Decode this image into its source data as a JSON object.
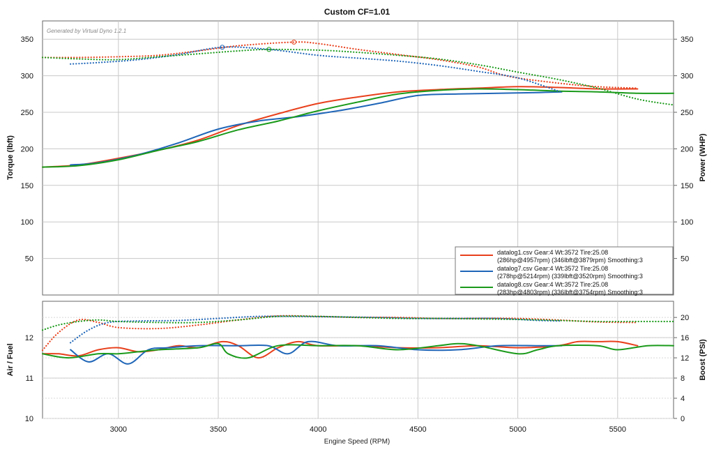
{
  "chart_data": {
    "title": "Custom CF=1.01",
    "watermark": "Generated by Virtual Dyno 1.2.1",
    "xlabel": "Engine Speed (RPM)",
    "xlim": [
      2620,
      5780
    ],
    "x_ticks": [
      3000,
      3500,
      4000,
      4500,
      5000,
      5500
    ],
    "colors": {
      "datalog1": "#e8401c",
      "datalog7": "#1f66b8",
      "datalog8": "#1a9a1a"
    },
    "panels": [
      {
        "name": "power-torque",
        "type": "line",
        "ylabel_left": "Torque (lbft)",
        "ylabel_right": "Power (WHP)",
        "ylim": [
          0,
          375
        ],
        "y_ticks": [
          50,
          100,
          150,
          200,
          250,
          300,
          350
        ],
        "y2lim": [
          0,
          375
        ],
        "y2_ticks": [
          50,
          100,
          150,
          200,
          250,
          300,
          350
        ],
        "legend_position": "bottom-right",
        "series": [
          {
            "name": "datalog1.csv Gear:4 Wt:3572 Tire:25.08",
            "detail": "(286hp@4957rpm) (346lbft@3879rpm) Smoothing:3",
            "color_key": "datalog1",
            "axis": "left",
            "style": "solid",
            "x": [
              2620,
              2800,
              3000,
              3200,
              3400,
              3600,
              3800,
              4000,
              4200,
              4400,
              4600,
              4800,
              5000,
              5200,
              5400,
              5600
            ],
            "y": [
              175,
              178,
              187,
              198,
              212,
              232,
              248,
              262,
              271,
              278,
              281,
              283,
              285,
              284,
              282,
              282
            ]
          },
          {
            "name": "datalog7.csv Gear:4 Wt:3572 Tire:25.08",
            "detail": "(278hp@5214rpm) (339lbft@3520rpm) Smoothing:3",
            "color_key": "datalog7",
            "axis": "left",
            "style": "solid",
            "x": [
              2760,
              2900,
              3100,
              3300,
              3500,
              3700,
              3900,
              4100,
              4300,
              4500,
              4700,
              4900,
              5100,
              5220
            ],
            "y": [
              178,
              181,
              192,
              208,
              227,
              238,
              244,
              252,
              262,
              273,
              275,
              276,
              277,
              278
            ]
          },
          {
            "name": "datalog8.csv Gear:4 Wt:3572 Tire:25.08",
            "detail": "(283hp@4803rpm) (336lbft@3754rpm) Smoothing:3",
            "color_key": "datalog8",
            "axis": "left",
            "style": "solid",
            "x": [
              2620,
              2800,
              3000,
              3200,
              3400,
              3600,
              3800,
              4000,
              4200,
              4400,
              4600,
              4800,
              5000,
              5200,
              5400,
              5600,
              5780
            ],
            "y": [
              175,
              177,
              185,
              198,
              210,
              226,
              238,
              252,
              264,
              275,
              280,
              282,
              281,
              279,
              278,
              276,
              276
            ]
          },
          {
            "name": "datalog1.csv",
            "color_key": "datalog1",
            "axis": "right",
            "style": "dotted",
            "x": [
              2620,
              2800,
              3000,
              3200,
              3400,
              3600,
              3879,
              4000,
              4200,
              4400,
              4600,
              4800,
              4957,
              5200,
              5400,
              5600
            ],
            "y": [
              325,
              325,
              326,
              328,
              334,
              341,
              346,
              344,
              336,
              329,
              322,
              312,
              299,
              290,
              285,
              283
            ]
          },
          {
            "name": "datalog7.csv",
            "color_key": "datalog7",
            "axis": "right",
            "style": "dotted",
            "x": [
              2760,
              2900,
              3100,
              3300,
              3520,
              3754,
              4000,
              4200,
              4400,
              4600,
              4800,
              5000,
              5214
            ],
            "y": [
              316,
              318,
              322,
              329,
              339,
              336,
              328,
              324,
              320,
              314,
              306,
              297,
              278
            ]
          },
          {
            "name": "datalog8.csv",
            "color_key": "datalog8",
            "axis": "right",
            "style": "dotted",
            "x": [
              2620,
              2800,
              3000,
              3200,
              3400,
              3600,
              3754,
              4000,
              4200,
              4400,
              4600,
              4803,
              5000,
              5200,
              5400,
              5600,
              5780
            ],
            "y": [
              325,
              323,
              322,
              326,
              330,
              334,
              336,
              335,
              332,
              328,
              323,
              315,
              305,
              295,
              283,
              268,
              260
            ]
          }
        ]
      },
      {
        "name": "air-fuel-boost",
        "type": "line",
        "ylabel_left": "Air / Fuel",
        "ylabel_right": "Boost (PSI)",
        "ylim": [
          10,
          12.9
        ],
        "y_ticks": [
          10,
          11,
          12
        ],
        "y2lim": [
          0,
          23.2
        ],
        "y2_ticks": [
          0,
          4,
          8,
          12,
          16,
          20
        ],
        "series": [
          {
            "name": "datalog1.csv",
            "color_key": "datalog1",
            "axis": "left",
            "style": "solid",
            "x": [
              2620,
              2700,
              2800,
              2900,
              3000,
              3100,
              3200,
              3300,
              3400,
              3520,
              3600,
              3700,
              3800,
              3900,
              4000,
              4200,
              4400,
              4600,
              4800,
              5000,
              5200,
              5300,
              5400,
              5500,
              5600
            ],
            "y": [
              11.6,
              11.6,
              11.55,
              11.7,
              11.75,
              11.65,
              11.7,
              11.8,
              11.75,
              11.9,
              11.8,
              11.5,
              11.75,
              11.9,
              11.8,
              11.8,
              11.75,
              11.75,
              11.8,
              11.75,
              11.8,
              11.9,
              11.9,
              11.9,
              11.8
            ]
          },
          {
            "name": "datalog7.csv",
            "color_key": "datalog7",
            "axis": "left",
            "style": "solid",
            "x": [
              2760,
              2850,
              2950,
              3050,
              3150,
              3250,
              3400,
              3600,
              3750,
              3850,
              3950,
              4100,
              4300,
              4500,
              4700,
              4900,
              5100,
              5220
            ],
            "y": [
              11.7,
              11.4,
              11.6,
              11.35,
              11.7,
              11.75,
              11.8,
              11.8,
              11.8,
              11.6,
              11.9,
              11.8,
              11.8,
              11.7,
              11.7,
              11.8,
              11.8,
              11.8
            ]
          },
          {
            "name": "datalog8.csv",
            "color_key": "datalog8",
            "axis": "left",
            "style": "solid",
            "x": [
              2620,
              2750,
              2900,
              3000,
              3100,
              3200,
              3400,
              3500,
              3550,
              3650,
              3800,
              4000,
              4200,
              4400,
              4600,
              4700,
              4800,
              5000,
              5100,
              5200,
              5400,
              5500,
              5650,
              5780
            ],
            "y": [
              11.6,
              11.5,
              11.6,
              11.6,
              11.65,
              11.7,
              11.75,
              11.85,
              11.6,
              11.5,
              11.8,
              11.8,
              11.8,
              11.7,
              11.8,
              11.85,
              11.8,
              11.6,
              11.7,
              11.8,
              11.8,
              11.7,
              11.8,
              11.8
            ]
          },
          {
            "name": "datalog1.csv",
            "color_key": "datalog1",
            "axis": "right",
            "style": "dotted",
            "x": [
              2620,
              2700,
              2800,
              2900,
              3000,
              3200,
              3400,
              3600,
              3800,
              4000,
              4200,
              4400,
              4600,
              4800,
              5000,
              5200,
              5400,
              5600
            ],
            "y": [
              13.5,
              17,
              19.5,
              19,
              18,
              17.8,
              18.5,
              19.5,
              20.3,
              20.2,
              20,
              20,
              19.8,
              19.8,
              19.8,
              19.5,
              19.1,
              19
            ]
          },
          {
            "name": "datalog7.csv",
            "color_key": "datalog7",
            "axis": "right",
            "style": "dotted",
            "x": [
              2760,
              2850,
              2950,
              3100,
              3300,
              3500,
              3700,
              3900,
              4100,
              4300,
              4500,
              4700,
              4900,
              5100,
              5220
            ],
            "y": [
              15,
              17.5,
              19,
              19.3,
              19.4,
              19.8,
              20.2,
              20.2,
              20.1,
              20,
              19.8,
              19.8,
              19.8,
              19.4,
              19.3
            ]
          },
          {
            "name": "datalog8.csv",
            "color_key": "datalog8",
            "axis": "right",
            "style": "dotted",
            "x": [
              2620,
              2700,
              2800,
              2900,
              3000,
              3200,
              3400,
              3600,
              3800,
              4000,
              4200,
              4400,
              4600,
              4800,
              5000,
              5200,
              5400,
              5600,
              5780
            ],
            "y": [
              17.5,
              18.5,
              19.2,
              19.5,
              19.2,
              19,
              19,
              19.5,
              20.2,
              20.2,
              20,
              19.8,
              19.8,
              19.7,
              19.6,
              19.4,
              19.2,
              19.2,
              19.2
            ]
          }
        ]
      }
    ]
  }
}
